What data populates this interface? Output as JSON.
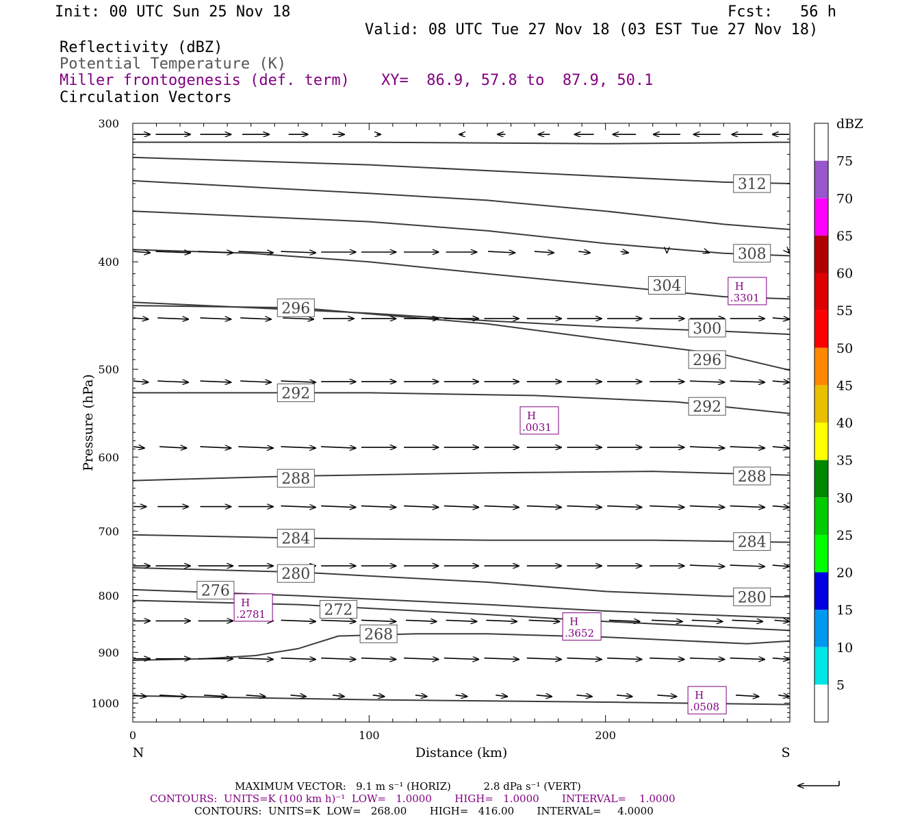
{
  "header": {
    "init": "Init: 00 UTC Sun 25 Nov 18",
    "fcst": "Fcst:   56 h",
    "valid": "Valid: 08 UTC Tue 27 Nov 18 (03 EST Tue 27 Nov 18)",
    "fields": [
      "Reflectivity (dBZ)",
      "Potential Temperature (K)",
      "Miller frontogenesis (def. term)",
      "Circulation Vectors"
    ],
    "xy": "XY=  86.9, 57.8 to  87.9, 50.1"
  },
  "colorbar": {
    "title": "dBZ",
    "labels": [
      "5",
      "10",
      "15",
      "20",
      "25",
      "30",
      "35",
      "40",
      "45",
      "50",
      "55",
      "60",
      "65",
      "70",
      "75"
    ],
    "colors": [
      "#ffffff",
      "#00e6e6",
      "#0099ee",
      "#0000e0",
      "#00ff00",
      "#00cc00",
      "#008800",
      "#ffff00",
      "#e8c000",
      "#ff8800",
      "#ff0000",
      "#dd0000",
      "#b00000",
      "#ff00ff",
      "#9955cc",
      "#ffffff"
    ]
  },
  "chart_data": {
    "type": "line",
    "title": "",
    "xlabel": "Distance (km)",
    "ylabel": "Pressure (hPa)",
    "xlim": [
      0,
      278
    ],
    "ylim": [
      1040,
      300
    ],
    "y_scale": "log-pressure (inverted)",
    "x_ticks": [
      "0",
      "100",
      "200"
    ],
    "y_ticks": [
      "300",
      "400",
      "500",
      "600",
      "700",
      "800",
      "900",
      "1000"
    ],
    "x_end_labels": {
      "left": "N",
      "right": "S"
    },
    "series": [
      {
        "name": "",
        "points": [
          [
            0,
            312
          ],
          [
            100,
            312
          ],
          [
            200,
            313
          ],
          [
            278,
            312
          ]
        ]
      },
      {
        "name": "312",
        "points": [
          [
            0,
            322
          ],
          [
            100,
            327
          ],
          [
            200,
            335
          ],
          [
            250,
            339
          ],
          [
            278,
            340
          ]
        ]
      },
      {
        "name": "",
        "points": [
          [
            0,
            338
          ],
          [
            100,
            347
          ],
          [
            150,
            352
          ],
          [
            200,
            360
          ],
          [
            250,
            370
          ],
          [
            278,
            374
          ]
        ]
      },
      {
        "name": "308",
        "points": [
          [
            0,
            360
          ],
          [
            100,
            368
          ],
          [
            150,
            375
          ],
          [
            200,
            385
          ],
          [
            250,
            393
          ],
          [
            278,
            395
          ]
        ]
      },
      {
        "name": "304",
        "points": [
          [
            0,
            390
          ],
          [
            50,
            393
          ],
          [
            100,
            400
          ],
          [
            150,
            410
          ],
          [
            200,
            420
          ],
          [
            250,
            430
          ],
          [
            278,
            432
          ]
        ]
      },
      {
        "name": "300",
        "points": [
          [
            0,
            435
          ],
          [
            100,
            445
          ],
          [
            150,
            452
          ],
          [
            200,
            458
          ],
          [
            250,
            462
          ],
          [
            278,
            465
          ]
        ]
      },
      {
        "name": "296",
        "points": [
          [
            0,
            438
          ],
          [
            70,
            440
          ],
          [
            150,
            455
          ],
          [
            200,
            470
          ],
          [
            250,
            485
          ],
          [
            278,
            501
          ]
        ]
      },
      {
        "name": "292",
        "points": [
          [
            0,
            525
          ],
          [
            100,
            525
          ],
          [
            170,
            528
          ],
          [
            230,
            535
          ],
          [
            278,
            548
          ]
        ]
      },
      {
        "name": "288",
        "points": [
          [
            0,
            630
          ],
          [
            70,
            624
          ],
          [
            150,
            620
          ],
          [
            220,
            618
          ],
          [
            278,
            623
          ]
        ]
      },
      {
        "name": "284",
        "points": [
          [
            0,
            705
          ],
          [
            70,
            710
          ],
          [
            150,
            713
          ],
          [
            220,
            713
          ],
          [
            278,
            716
          ]
        ]
      },
      {
        "name": "280",
        "points": [
          [
            0,
            755
          ],
          [
            70,
            762
          ],
          [
            150,
            778
          ],
          [
            200,
            793
          ],
          [
            250,
            801
          ],
          [
            278,
            802
          ]
        ]
      },
      {
        "name": "276",
        "points": [
          [
            0,
            790
          ],
          [
            70,
            800
          ],
          [
            150,
            815
          ],
          [
            200,
            826
          ],
          [
            278,
            838
          ]
        ]
      },
      {
        "name": "272",
        "points": [
          [
            0,
            808
          ],
          [
            70,
            815
          ],
          [
            150,
            832
          ],
          [
            200,
            844
          ],
          [
            278,
            860
          ]
        ]
      },
      {
        "name": "268",
        "points": [
          [
            0,
            915
          ],
          [
            30,
            912
          ],
          [
            52,
            906
          ],
          [
            70,
            893
          ],
          [
            87,
            870
          ],
          [
            120,
            866
          ],
          [
            150,
            866
          ],
          [
            200,
            872
          ],
          [
            260,
            884
          ],
          [
            278,
            879
          ]
        ]
      },
      {
        "name": "",
        "points": [
          [
            0,
            985
          ],
          [
            100,
            993
          ],
          [
            200,
            998
          ],
          [
            278,
            1003
          ]
        ]
      }
    ],
    "contour_labels": [
      {
        "text": "312",
        "x": 262,
        "p": 340
      },
      {
        "text": "308",
        "x": 262,
        "p": 393
      },
      {
        "text": "304",
        "x": 226,
        "p": 420
      },
      {
        "text": "300",
        "x": 243,
        "p": 459
      },
      {
        "text": "296",
        "x": 69,
        "p": 440
      },
      {
        "text": "296",
        "x": 243,
        "p": 490
      },
      {
        "text": "292",
        "x": 69,
        "p": 525
      },
      {
        "text": "292",
        "x": 243,
        "p": 540
      },
      {
        "text": "288",
        "x": 69,
        "p": 627
      },
      {
        "text": "288",
        "x": 262,
        "p": 624
      },
      {
        "text": "284",
        "x": 69,
        "p": 710
      },
      {
        "text": "284",
        "x": 262,
        "p": 715
      },
      {
        "text": "280",
        "x": 69,
        "p": 764
      },
      {
        "text": "280",
        "x": 262,
        "p": 802
      },
      {
        "text": "276",
        "x": 35,
        "p": 791
      },
      {
        "text": "272",
        "x": 87,
        "p": 823
      },
      {
        "text": "268",
        "x": 104,
        "p": 866
      }
    ],
    "frontogenesis_highs": [
      {
        "label": "H",
        "value": ".3301",
        "x": 260,
        "p": 425
      },
      {
        "label": "H",
        "value": ".0031",
        "x": 172,
        "p": 556
      },
      {
        "label": "H",
        "value": ".2781",
        "x": 51,
        "p": 820
      },
      {
        "label": "H",
        "value": ".3652",
        "x": 190,
        "p": 853
      },
      {
        "label": "H",
        "value": ".0508",
        "x": 243,
        "p": 994
      }
    ],
    "vectors": [
      {
        "p": 307,
        "x": [
          0,
          17,
          35,
          52,
          70,
          87,
          104,
          122,
          139,
          156,
          174,
          191,
          208,
          226,
          243,
          260,
          278
        ],
        "dx": [
          9,
          9,
          8,
          7,
          5,
          3,
          1,
          0,
          -1,
          -2,
          -3,
          -5,
          -6,
          -7,
          -7,
          -8,
          -9
        ],
        "dp": [
          0,
          0,
          0,
          0,
          0,
          0,
          0,
          0,
          0,
          0,
          0,
          0,
          0,
          0,
          0,
          0,
          0
        ]
      },
      {
        "p": 392,
        "x": [
          0,
          17,
          35,
          52,
          70,
          87,
          104,
          122,
          139,
          156,
          174,
          191,
          208,
          226,
          243,
          260,
          278
        ],
        "dx": [
          9,
          9,
          9,
          9,
          9,
          9,
          9,
          9,
          8,
          7,
          5,
          3,
          2,
          0,
          1,
          2,
          1
        ],
        "dp": [
          1,
          1,
          1,
          1,
          1,
          0,
          0,
          0,
          0,
          1,
          1,
          1,
          1,
          1,
          1,
          1,
          1
        ]
      },
      {
        "p": 450,
        "x": [
          0,
          17,
          35,
          52,
          70,
          87,
          104,
          122,
          139,
          156,
          174,
          191,
          208,
          226,
          243,
          260,
          278
        ],
        "dx": [
          8,
          8,
          8,
          8,
          8,
          8,
          9,
          9,
          9,
          9,
          9,
          9,
          9,
          9,
          9,
          9,
          9
        ],
        "dp": [
          1,
          1,
          1,
          1,
          1,
          0,
          0,
          0,
          0,
          0,
          0,
          0,
          0,
          0,
          0,
          0,
          1
        ]
      },
      {
        "p": 513,
        "x": [
          0,
          17,
          35,
          52,
          70,
          87,
          104,
          122,
          139,
          156,
          174,
          191,
          208,
          226,
          243,
          260,
          278
        ],
        "dx": [
          8,
          8,
          8,
          8,
          9,
          9,
          9,
          9,
          9,
          9,
          9,
          9,
          9,
          9,
          9,
          9,
          9
        ],
        "dp": [
          1,
          1,
          1,
          1,
          1,
          0,
          0,
          0,
          0,
          0,
          0,
          0,
          0,
          0,
          1,
          1,
          1
        ]
      },
      {
        "p": 588,
        "x": [
          0,
          17,
          35,
          52,
          70,
          87,
          104,
          122,
          139,
          156,
          174,
          191,
          208,
          226,
          243,
          260,
          278
        ],
        "dx": [
          6,
          7,
          8,
          9,
          9,
          9,
          9,
          9,
          9,
          9,
          9,
          9,
          9,
          9,
          9,
          9,
          9
        ],
        "dp": [
          1,
          1,
          1,
          1,
          1,
          1,
          0,
          0,
          0,
          0,
          0,
          0,
          0,
          0,
          1,
          1,
          1
        ]
      },
      {
        "p": 665,
        "x": [
          0,
          17,
          35,
          52,
          70,
          87,
          104,
          122,
          139,
          156,
          174,
          191,
          208,
          226,
          243,
          260,
          278
        ],
        "dx": [
          7,
          8,
          8,
          9,
          9,
          9,
          9,
          9,
          9,
          9,
          9,
          9,
          9,
          9,
          9,
          9,
          9
        ],
        "dp": [
          0,
          0,
          0,
          0,
          1,
          1,
          1,
          1,
          1,
          1,
          1,
          1,
          1,
          1,
          1,
          1,
          1
        ]
      },
      {
        "p": 752,
        "x": [
          0,
          17,
          35,
          52,
          70,
          87,
          104,
          122,
          139,
          156,
          174,
          191,
          208,
          226,
          243,
          260,
          278
        ],
        "dx": [
          9,
          9,
          9,
          9,
          9,
          9,
          9,
          9,
          9,
          9,
          9,
          9,
          9,
          9,
          9,
          9,
          9
        ],
        "dp": [
          0,
          0,
          0,
          0,
          0,
          0,
          0,
          0,
          0,
          0,
          0,
          0,
          0,
          0,
          1,
          1,
          1
        ]
      },
      {
        "p": 843,
        "x": [
          0,
          17,
          35,
          52,
          70,
          87,
          104,
          122,
          139,
          156,
          174,
          191,
          208,
          226,
          243,
          260,
          278
        ],
        "dx": [
          9,
          9,
          9,
          9,
          9,
          9,
          9,
          8,
          8,
          8,
          8,
          8,
          8,
          8,
          8,
          8,
          8
        ],
        "dp": [
          0,
          0,
          0,
          0,
          1,
          1,
          1,
          1,
          1,
          1,
          1,
          1,
          1,
          1,
          1,
          1,
          1
        ]
      },
      {
        "p": 912,
        "x": [
          0,
          17,
          35,
          52,
          70,
          87,
          104,
          122,
          139,
          156,
          174,
          191,
          208,
          226,
          243,
          260,
          278
        ],
        "dx": [
          9,
          9,
          9,
          9,
          9,
          9,
          9,
          9,
          9,
          9,
          9,
          9,
          9,
          9,
          9,
          9,
          9
        ],
        "dp": [
          0,
          0,
          0,
          1,
          1,
          1,
          1,
          1,
          1,
          1,
          1,
          1,
          1,
          1,
          1,
          1,
          1
        ]
      },
      {
        "p": 985,
        "x": [
          0,
          17,
          35,
          52,
          70,
          87,
          104,
          122,
          139,
          156,
          174,
          191,
          208,
          226,
          243,
          260,
          278
        ],
        "dx": [
          7,
          7,
          6,
          5,
          4,
          3,
          3,
          3,
          3,
          3,
          4,
          4,
          4,
          5,
          5,
          6,
          6
        ],
        "dp": [
          1,
          1,
          1,
          1,
          1,
          1,
          1,
          1,
          1,
          1,
          1,
          1,
          1,
          1,
          1,
          1,
          1
        ]
      }
    ]
  },
  "footer": {
    "max_vector": "MAXIMUM VECTOR:   9.1 m s⁻¹ (HORIZ)          2.8 dPa s⁻¹ (VERT)",
    "contours1": "CONTOURS:  UNITS=K (100 km h)⁻¹  LOW=   1.0000       HIGH=   1.0000       INTERVAL=    1.0000",
    "contours2": "CONTOURS:  UNITS=K  LOW=   268.00       HIGH=   416.00       INTERVAL=     4.0000"
  }
}
